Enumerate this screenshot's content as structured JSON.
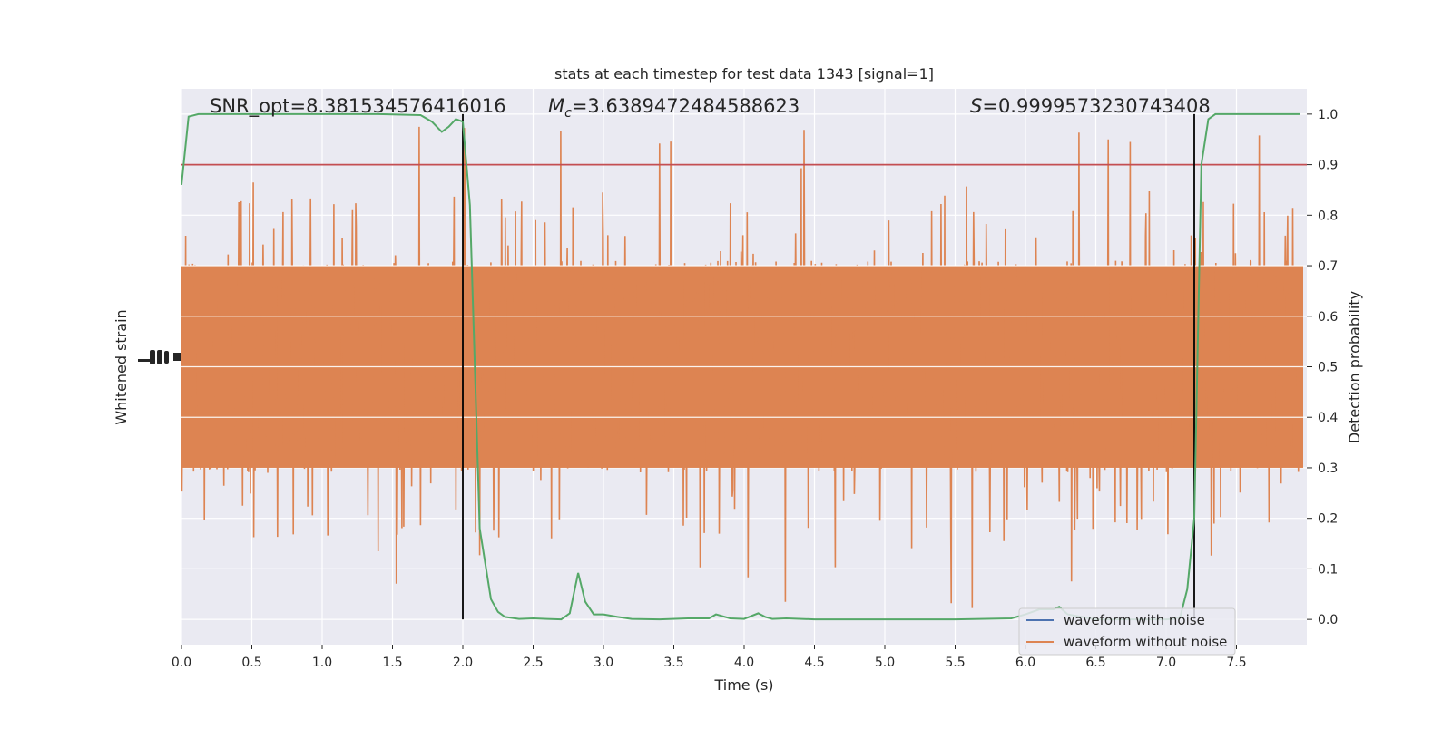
{
  "chart_data": {
    "type": "line",
    "title": "stats at each timestep for test data 1343 [signal=1]",
    "xlabel": "Time (s)",
    "ylabel_left": "Whitened strain",
    "ylabel_right": "Detection probability",
    "xlim": [
      0.0,
      8.0
    ],
    "ylim_right": [
      -0.05,
      1.05
    ],
    "x_ticks": [
      0.0,
      0.5,
      1.0,
      1.5,
      2.0,
      2.5,
      3.0,
      3.5,
      4.0,
      4.5,
      5.0,
      5.5,
      6.0,
      6.5,
      7.0,
      7.5
    ],
    "x_tick_labels": [
      "0.0",
      "0.5",
      "1.0",
      "1.5",
      "2.0",
      "2.5",
      "3.0",
      "3.5",
      "4.0",
      "4.5",
      "5.0",
      "5.5",
      "6.0",
      "6.5",
      "7.0",
      "7.5"
    ],
    "y_right_ticks": [
      0.0,
      0.1,
      0.2,
      0.3,
      0.4,
      0.5,
      0.6,
      0.7,
      0.8,
      0.9,
      1.0
    ],
    "y_right_tick_labels": [
      "0.0",
      "0.1",
      "0.2",
      "0.3",
      "0.4",
      "0.5",
      "0.6",
      "0.7",
      "0.8",
      "0.9",
      "1.0"
    ],
    "grid": true,
    "annotations": {
      "snr": "SNR_opt=8.381534576416016",
      "mc_symbol": "M",
      "mc_subscript": "c",
      "mc_value": "=3.6389472484588623",
      "s_symbol": "S",
      "s_value": "=0.9999573230743408"
    },
    "threshold": 0.9,
    "vlines": [
      2.0,
      7.2
    ],
    "legend": {
      "position": "lower right",
      "entries": [
        "waveform with noise",
        "waveform without noise"
      ]
    },
    "series": [
      {
        "name": "waveform with noise",
        "color": "#4c72b0",
        "visible_samples": 0
      },
      {
        "name": "waveform without noise",
        "color": "#dd8452",
        "mapped_range": [
          0.0,
          1.0
        ],
        "typical_range": [
          0.3,
          0.7
        ]
      },
      {
        "color": "#55a868",
        "x": [
          0.0,
          0.05,
          0.12,
          0.3,
          0.6,
          1.0,
          1.4,
          1.7,
          1.78,
          1.85,
          1.9,
          1.95,
          2.0,
          2.05,
          2.08,
          2.12,
          2.2,
          2.25,
          2.3,
          2.4,
          2.5,
          2.6,
          2.7,
          2.76,
          2.82,
          2.87,
          2.93,
          3.0,
          3.1,
          3.2,
          3.4,
          3.6,
          3.75,
          3.8,
          3.9,
          4.0,
          4.1,
          4.15,
          4.2,
          4.3,
          4.5,
          5.0,
          5.5,
          5.9,
          6.0,
          6.1,
          6.2,
          6.24,
          6.3,
          6.5,
          6.8,
          7.0,
          7.05,
          7.1,
          7.15,
          7.2,
          7.25,
          7.3,
          7.35,
          7.45,
          7.6,
          7.8,
          7.95
        ],
        "y": [
          0.86,
          0.995,
          1.0,
          1.0,
          1.0,
          1.0,
          1.0,
          0.998,
          0.985,
          0.965,
          0.975,
          0.99,
          0.985,
          0.82,
          0.55,
          0.18,
          0.04,
          0.015,
          0.005,
          0.001,
          0.002,
          0.001,
          0.0,
          0.012,
          0.092,
          0.035,
          0.01,
          0.01,
          0.005,
          0.001,
          0.0,
          0.002,
          0.002,
          0.01,
          0.002,
          0.001,
          0.012,
          0.005,
          0.001,
          0.002,
          0.0,
          0.0,
          0.0,
          0.002,
          0.01,
          0.02,
          0.02,
          0.025,
          0.01,
          0.0,
          0.0,
          0.0,
          0.001,
          0.005,
          0.06,
          0.2,
          0.9,
          0.99,
          1.0,
          1.0,
          1.0,
          1.0,
          1.0
        ]
      }
    ]
  }
}
